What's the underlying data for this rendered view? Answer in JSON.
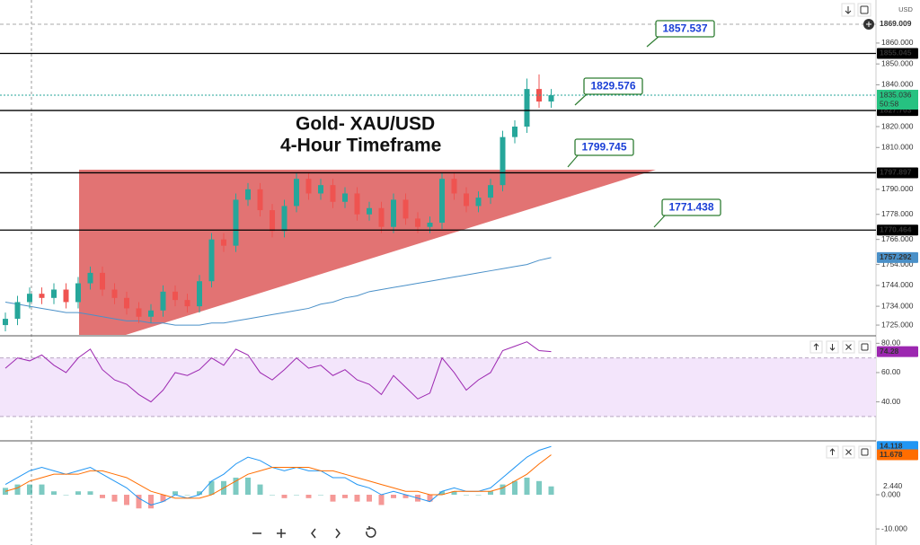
{
  "chart_data": [
    {
      "type": "candlestick",
      "title": "Gold- XAU/USD",
      "subtitle": "4-Hour Timeframe",
      "currency": "USD",
      "open": [
        1725,
        1728,
        1736,
        1740,
        1738,
        1742,
        1736,
        1745,
        1750,
        1742,
        1738,
        1733,
        1729,
        1732,
        1741,
        1737,
        1734,
        1746,
        1766,
        1763,
        1785,
        1790,
        1780,
        1770,
        1782,
        1795,
        1788,
        1792,
        1784,
        1788,
        1778,
        1781,
        1772,
        1785,
        1776,
        1772,
        1774,
        1795,
        1788,
        1782,
        1786,
        1792,
        1815,
        1820,
        1838,
        1832
      ],
      "high": [
        1731,
        1739,
        1743,
        1743,
        1745,
        1745,
        1748,
        1753,
        1753,
        1745,
        1741,
        1736,
        1735,
        1744,
        1744,
        1740,
        1749,
        1769,
        1769,
        1788,
        1793,
        1793,
        1783,
        1785,
        1798,
        1798,
        1795,
        1795,
        1791,
        1791,
        1784,
        1784,
        1788,
        1788,
        1779,
        1777,
        1798,
        1798,
        1791,
        1789,
        1795,
        1818,
        1823,
        1843,
        1845,
        1838
      ],
      "low": [
        1722,
        1725,
        1733,
        1735,
        1735,
        1733,
        1733,
        1742,
        1739,
        1735,
        1730,
        1726,
        1726,
        1729,
        1734,
        1731,
        1731,
        1743,
        1760,
        1760,
        1782,
        1777,
        1767,
        1767,
        1779,
        1785,
        1785,
        1781,
        1781,
        1775,
        1775,
        1769,
        1769,
        1773,
        1769,
        1769,
        1771,
        1785,
        1779,
        1779,
        1783,
        1789,
        1812,
        1817,
        1829,
        1829
      ],
      "close": [
        1728,
        1736,
        1740,
        1738,
        1742,
        1736,
        1745,
        1750,
        1742,
        1738,
        1733,
        1729,
        1732,
        1741,
        1737,
        1734,
        1746,
        1766,
        1763,
        1785,
        1790,
        1780,
        1770,
        1782,
        1795,
        1788,
        1792,
        1784,
        1788,
        1778,
        1781,
        1772,
        1785,
        1776,
        1772,
        1774,
        1795,
        1788,
        1782,
        1786,
        1792,
        1815,
        1820,
        1838,
        1832,
        1835.036
      ],
      "up_color": "#26a69a",
      "down_color": "#ef5350",
      "ma": {
        "color": "#4a90c8",
        "values": [
          1736,
          1735,
          1734,
          1733,
          1732,
          1731,
          1731,
          1730,
          1729,
          1728,
          1727,
          1727,
          1726,
          1726,
          1725,
          1725,
          1725,
          1726,
          1726,
          1727,
          1728,
          1729,
          1730,
          1731,
          1732,
          1733,
          1735,
          1736,
          1738,
          1739,
          1741,
          1742,
          1743,
          1744,
          1745,
          1746,
          1747,
          1748,
          1749,
          1750,
          1751,
          1752,
          1753,
          1754,
          1756,
          1757.292
        ]
      },
      "levels": [
        1855.045,
        1827.703,
        1797.897,
        1770.464
      ],
      "annotations": [
        1857.537,
        1829.576,
        1799.745,
        1771.438
      ],
      "high_marker": 1869.009,
      "countdown": "50:58",
      "ylim": [
        1720.3,
        1880.6
      ],
      "yticks": [
        {
          "value": 1725,
          "label": "1725.000"
        },
        {
          "value": 1734,
          "label": "1734.000"
        },
        {
          "value": 1744,
          "label": "1744.000"
        },
        {
          "value": 1754,
          "label": "1754.000"
        },
        {
          "value": 1766,
          "label": "1766.000"
        },
        {
          "value": 1778,
          "label": "1778.000"
        },
        {
          "value": 1790,
          "label": "1790.000"
        },
        {
          "value": 1810,
          "label": "1810.000"
        },
        {
          "value": 1820,
          "label": "1820.000"
        },
        {
          "value": 1840,
          "label": "1840.000"
        },
        {
          "value": 1850,
          "label": "1850.000"
        },
        {
          "value": 1860,
          "label": "1860.000"
        }
      ]
    },
    {
      "type": "line",
      "color": "#9c27b0",
      "band": [
        30,
        70
      ],
      "band_color": "#f3e5fb",
      "values": [
        63,
        70,
        68,
        72,
        65,
        60,
        70,
        76,
        62,
        55,
        52,
        45,
        40,
        48,
        60,
        58,
        62,
        70,
        65,
        76,
        72,
        60,
        55,
        62,
        70,
        63,
        65,
        58,
        62,
        55,
        52,
        45,
        58,
        50,
        42,
        46,
        70,
        60,
        48,
        55,
        60,
        75,
        78,
        81,
        75,
        74.28
      ],
      "ylim": [
        14,
        84.5
      ],
      "yticks": [
        {
          "value": 40,
          "label": "40.00"
        },
        {
          "value": 60,
          "label": "60.00"
        },
        {
          "value": 80,
          "label": "80.00"
        }
      ]
    },
    {
      "type": "macd",
      "series": [
        {
          "color": "#2196f3",
          "values": [
            3,
            5,
            7,
            8,
            7,
            6,
            7,
            8,
            6,
            4,
            2,
            -1,
            -3,
            -2,
            0,
            -1,
            0,
            4,
            6,
            9,
            11,
            10,
            8,
            7,
            8,
            7,
            7,
            5,
            5,
            3,
            2,
            0,
            1,
            0,
            -1,
            -2,
            1,
            2,
            1,
            1,
            2,
            5,
            8,
            11,
            13,
            14.118
          ]
        },
        {
          "color": "#ff6d00",
          "values": [
            1,
            2,
            4,
            5,
            6,
            6,
            6,
            7,
            7,
            6,
            5,
            3,
            1,
            0,
            -1,
            -1,
            -1,
            0,
            2,
            4,
            6,
            7,
            8,
            8,
            8,
            8,
            7,
            7,
            6,
            5,
            4,
            3,
            2,
            1,
            1,
            0,
            0,
            1,
            1,
            1,
            1,
            2,
            4,
            6,
            9,
            11.678
          ]
        }
      ],
      "histogram": {
        "up_color": "#26a69a",
        "down_color": "#ef5350",
        "values": [
          2,
          3,
          3,
          3,
          1,
          0,
          1,
          1,
          -1,
          -2,
          -3,
          -4,
          -4,
          -2,
          1,
          0,
          1,
          4,
          4,
          5,
          5,
          3,
          0,
          -1,
          0,
          -1,
          0,
          -2,
          -1,
          -2,
          -2,
          -3,
          -1,
          -1,
          -2,
          -2,
          1,
          1,
          0,
          0,
          1,
          3,
          4,
          5,
          4,
          2.44
        ],
        "value_labels": [
          null,
          null,
          null,
          null,
          null,
          null,
          null,
          null,
          null,
          null,
          null,
          null,
          null,
          null,
          null,
          null,
          null,
          null,
          null,
          null,
          null,
          null,
          null,
          null,
          null,
          null,
          null,
          null,
          null,
          null,
          null,
          null,
          null,
          null,
          null,
          null,
          null,
          null,
          null,
          null,
          null,
          null,
          null,
          null,
          null,
          "2.440"
        ]
      },
      "ylim": [
        -14.7,
        15.5
      ],
      "yticks": [
        {
          "value": 0,
          "label": "0.000"
        },
        {
          "value": -10,
          "label": "-10.000"
        }
      ]
    }
  ]
}
